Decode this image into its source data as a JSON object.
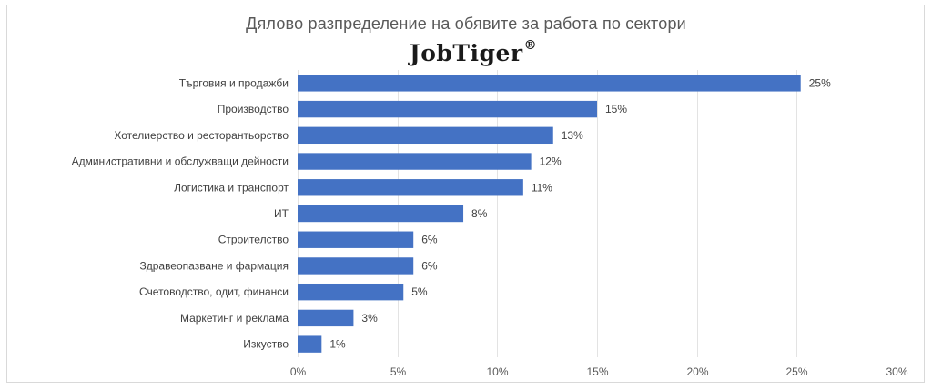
{
  "chart_data": {
    "type": "bar",
    "orientation": "horizontal",
    "title": "Дялово разпределение на обявите за работа по сектори",
    "brand": "JobTiger",
    "brand_mark": "®",
    "categories": [
      "Търговия и продажби",
      "Производство",
      "Хотелиерство и ресторантьорство",
      "Административни и обслужващи дейности",
      "Логистика и транспорт",
      "ИТ",
      "Строителство",
      "Здравеопазване и фармация",
      "Счетоводство, одит, финанси",
      "Маркетинг и реклама",
      "Изкуство"
    ],
    "values": [
      25.2,
      15.0,
      12.8,
      11.7,
      11.3,
      8.3,
      5.8,
      5.8,
      5.3,
      2.8,
      1.2
    ],
    "data_labels": [
      "25%",
      "15%",
      "13%",
      "12%",
      "11%",
      "8%",
      "6%",
      "6%",
      "5%",
      "3%",
      "1%"
    ],
    "xlim": [
      0,
      30
    ],
    "x_ticks": [
      "0%",
      "5%",
      "10%",
      "15%",
      "20%",
      "25%",
      "30%"
    ],
    "x_tick_values": [
      0,
      5,
      10,
      15,
      20,
      25,
      30
    ],
    "grid": true,
    "legend": "none",
    "bar_color": "#4472c4"
  }
}
